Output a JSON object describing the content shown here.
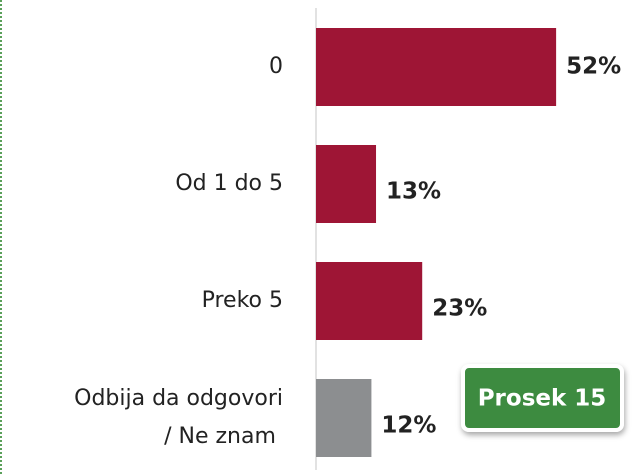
{
  "chart_data": {
    "type": "barh",
    "categories": [
      "0",
      "Od 1 do 5",
      "Preko 5",
      "Odbija da odgovori / Ne znam"
    ],
    "values": [
      52,
      13,
      23,
      12
    ],
    "value_labels": [
      "52%",
      "13%",
      "23%",
      "12%"
    ],
    "colors": [
      "#9e1535",
      "#9e1535",
      "#9e1535",
      "#8c8e90"
    ],
    "xlim": [
      0,
      68
    ],
    "annotation": "Prosek 15"
  }
}
